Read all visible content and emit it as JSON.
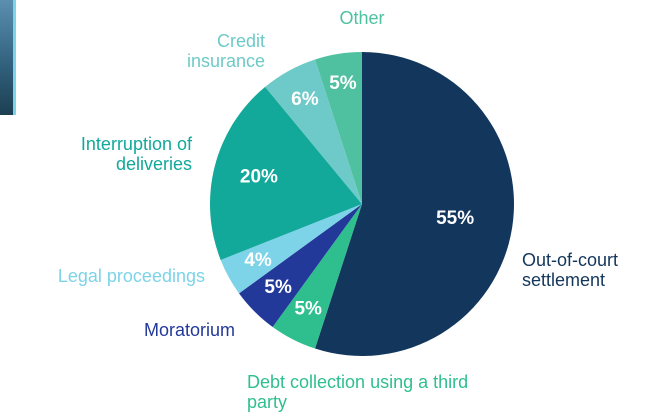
{
  "chart_data": {
    "type": "pie",
    "categories": [
      "Out-of-court settlement",
      "Debt collection using a third party",
      "Moratorium",
      "Legal proceedings",
      "Interruption of deliveries",
      "Credit insurance",
      "Other"
    ],
    "values": [
      55,
      5,
      5,
      4,
      20,
      6,
      5
    ],
    "value_labels": [
      "55%",
      "5%",
      "5%",
      "4%",
      "20%",
      "6%",
      "5%"
    ],
    "colors": [
      "#13365c",
      "#2fbf8f",
      "#23399a",
      "#7dd3e8",
      "#12a89a",
      "#6ecac8",
      "#4fc1a0"
    ]
  }
}
